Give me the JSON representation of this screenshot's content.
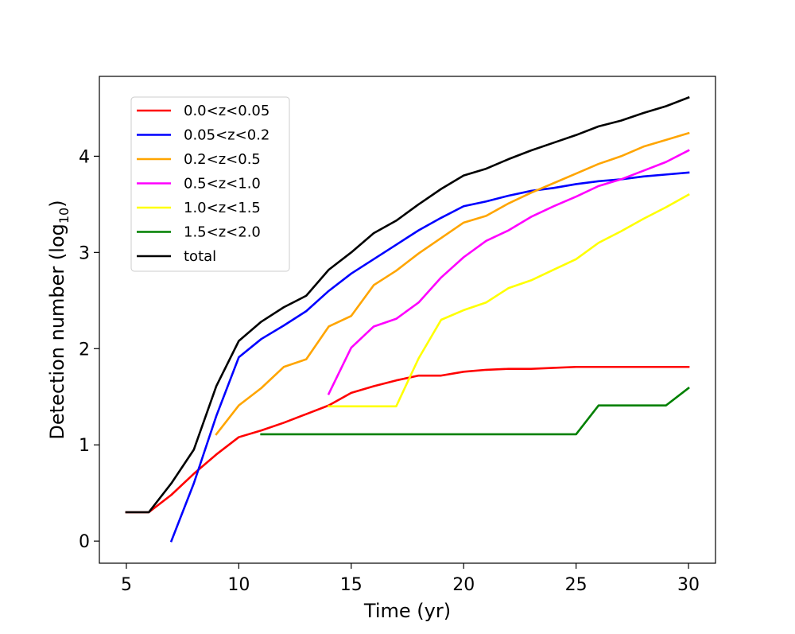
{
  "chart_data": {
    "type": "line",
    "title": "",
    "xlabel": "Time (yr)",
    "ylabel_main": "Detection number (log",
    "ylabel_sub": "10",
    "ylabel_close": ")",
    "xlim": [
      3.8,
      31.2
    ],
    "ylim": [
      -0.23,
      4.83
    ],
    "x_ticks": [
      5,
      10,
      15,
      20,
      25,
      30
    ],
    "x_tick_labels": [
      "5",
      "10",
      "15",
      "20",
      "25",
      "30"
    ],
    "y_ticks": [
      0,
      1,
      2,
      3,
      4
    ],
    "y_tick_labels": [
      "0",
      "1",
      "2",
      "3",
      "4"
    ],
    "grid": false,
    "legend_position": "upper-left",
    "series": [
      {
        "name": "0.0<z<0.05",
        "color": "#ff0000",
        "x": [
          5,
          6,
          7,
          8,
          9,
          10,
          11,
          12,
          13,
          14,
          15,
          16,
          17,
          18,
          19,
          20,
          21,
          22,
          23,
          24,
          25,
          26,
          27,
          28,
          29,
          30
        ],
        "values": [
          0.3,
          0.3,
          0.48,
          0.7,
          0.9,
          1.08,
          1.15,
          1.23,
          1.32,
          1.41,
          1.54,
          1.61,
          1.67,
          1.72,
          1.72,
          1.76,
          1.78,
          1.79,
          1.79,
          1.8,
          1.81,
          1.81,
          1.81,
          1.81,
          1.81,
          1.81
        ]
      },
      {
        "name": "0.05<z<0.2",
        "color": "#0000ff",
        "x": [
          7,
          8,
          9,
          10,
          11,
          12,
          13,
          14,
          15,
          16,
          17,
          18,
          19,
          20,
          21,
          22,
          23,
          24,
          25,
          26,
          27,
          28,
          29,
          30
        ],
        "values": [
          0.0,
          0.6,
          1.3,
          1.91,
          2.1,
          2.24,
          2.39,
          2.6,
          2.78,
          2.93,
          3.08,
          3.23,
          3.36,
          3.48,
          3.53,
          3.59,
          3.64,
          3.67,
          3.71,
          3.74,
          3.76,
          3.79,
          3.81,
          3.83
        ]
      },
      {
        "name": "0.2<z<0.5",
        "color": "#ffa500",
        "x": [
          9,
          10,
          11,
          12,
          13,
          14,
          15,
          16,
          17,
          18,
          19,
          20,
          21,
          22,
          23,
          24,
          25,
          26,
          27,
          28,
          29,
          30
        ],
        "values": [
          1.11,
          1.41,
          1.59,
          1.81,
          1.89,
          2.23,
          2.34,
          2.66,
          2.81,
          2.99,
          3.15,
          3.31,
          3.38,
          3.51,
          3.62,
          3.72,
          3.82,
          3.92,
          4.0,
          4.1,
          4.17,
          4.24
        ]
      },
      {
        "name": "0.5<z<1.0",
        "color": "#ff00ff",
        "x": [
          14,
          15,
          16,
          17,
          18,
          19,
          20,
          21,
          22,
          23,
          24,
          25,
          26,
          27,
          28,
          29,
          30
        ],
        "values": [
          1.53,
          2.01,
          2.23,
          2.31,
          2.48,
          2.74,
          2.95,
          3.12,
          3.23,
          3.37,
          3.48,
          3.58,
          3.69,
          3.76,
          3.85,
          3.94,
          4.06
        ]
      },
      {
        "name": "1.0<z<1.5",
        "color": "#ffff00",
        "x": [
          14,
          15,
          16,
          17,
          18,
          19,
          20,
          21,
          22,
          23,
          24,
          25,
          26,
          27,
          28,
          29,
          30
        ],
        "values": [
          1.4,
          1.4,
          1.4,
          1.4,
          1.9,
          2.3,
          2.4,
          2.48,
          2.63,
          2.71,
          2.82,
          2.93,
          3.1,
          3.22,
          3.35,
          3.47,
          3.6
        ]
      },
      {
        "name": "1.5<z<2.0",
        "color": "#008000",
        "x": [
          11,
          12,
          13,
          14,
          15,
          16,
          17,
          18,
          19,
          20,
          21,
          22,
          23,
          24,
          25,
          26,
          27,
          28,
          29,
          30
        ],
        "values": [
          1.11,
          1.11,
          1.11,
          1.11,
          1.11,
          1.11,
          1.11,
          1.11,
          1.11,
          1.11,
          1.11,
          1.11,
          1.11,
          1.11,
          1.11,
          1.41,
          1.41,
          1.41,
          1.41,
          1.59
        ]
      },
      {
        "name": "total",
        "color": "#000000",
        "x": [
          5,
          6,
          7,
          8,
          9,
          10,
          11,
          12,
          13,
          14,
          15,
          16,
          17,
          18,
          19,
          20,
          21,
          22,
          23,
          24,
          25,
          26,
          27,
          28,
          29,
          30
        ],
        "values": [
          0.3,
          0.3,
          0.6,
          0.95,
          1.61,
          2.08,
          2.28,
          2.43,
          2.55,
          2.82,
          3.0,
          3.2,
          3.33,
          3.5,
          3.66,
          3.8,
          3.87,
          3.97,
          4.06,
          4.14,
          4.22,
          4.31,
          4.37,
          4.45,
          4.52,
          4.61
        ]
      }
    ]
  }
}
